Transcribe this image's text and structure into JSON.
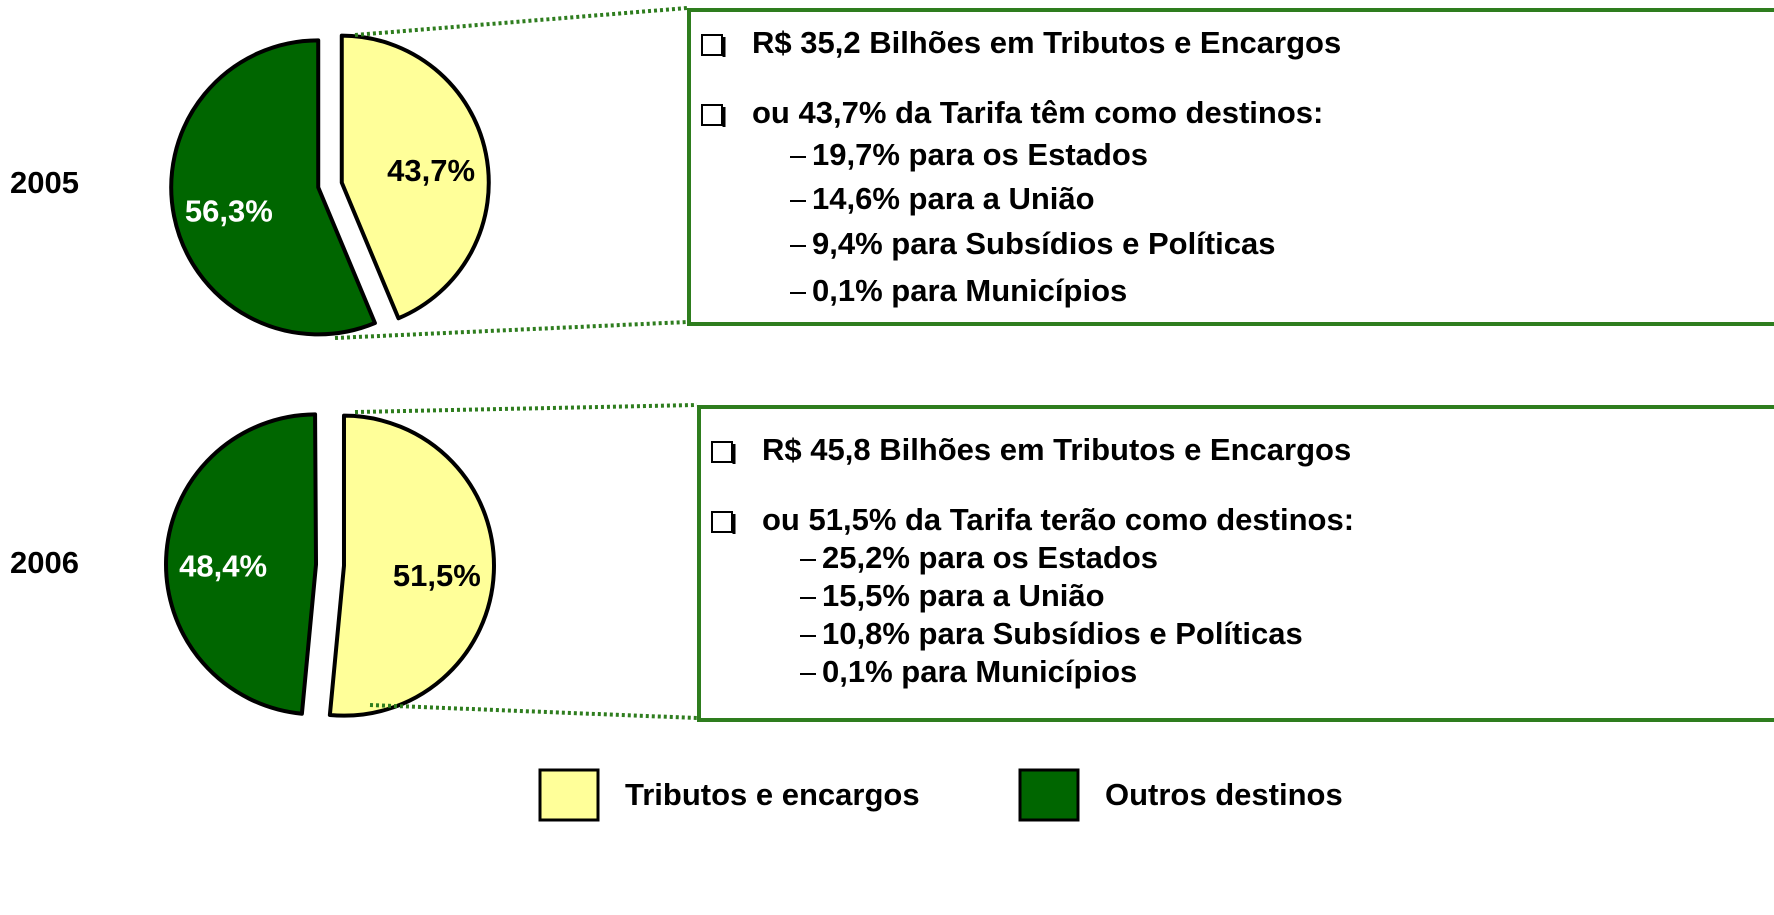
{
  "chart_data": [
    {
      "type": "pie",
      "title": "2005",
      "categories": [
        "Tributos e encargos",
        "Outros destinos"
      ],
      "values": [
        43.7,
        56.3
      ],
      "value_labels": [
        "43,7%",
        "56,3%"
      ],
      "colors": [
        "#ffff99",
        "#006600"
      ],
      "label_colors": [
        "#000000",
        "#ffffff"
      ],
      "box": {
        "items": [
          {
            "text": "R$ 35,2 Bilhões em Tributos e Encargos",
            "subitems": []
          },
          {
            "text": "ou 43,7% da Tarifa têm como destinos:",
            "subitems": [
              "19,7% para os Estados",
              "14,6% para a União",
              "9,4% para Subsídios e Políticas",
              "0,1% para Municípios"
            ]
          }
        ]
      }
    },
    {
      "type": "pie",
      "title": "2006",
      "categories": [
        "Tributos e encargos",
        "Outros destinos"
      ],
      "values": [
        51.5,
        48.4
      ],
      "value_labels": [
        "51,5%",
        "48,4%"
      ],
      "colors": [
        "#ffff99",
        "#006600"
      ],
      "label_colors": [
        "#000000",
        "#ffffff"
      ],
      "box": {
        "items": [
          {
            "text": "R$ 45,8 Bilhões em Tributos e Encargos",
            "subitems": []
          },
          {
            "text": "ou 51,5% da Tarifa terão como destinos:",
            "subitems": [
              "25,2% para os Estados",
              "15,5% para a União",
              "10,8% para Subsídios e Políticas",
              "0,1% para Municípios"
            ]
          }
        ]
      }
    }
  ]
}
